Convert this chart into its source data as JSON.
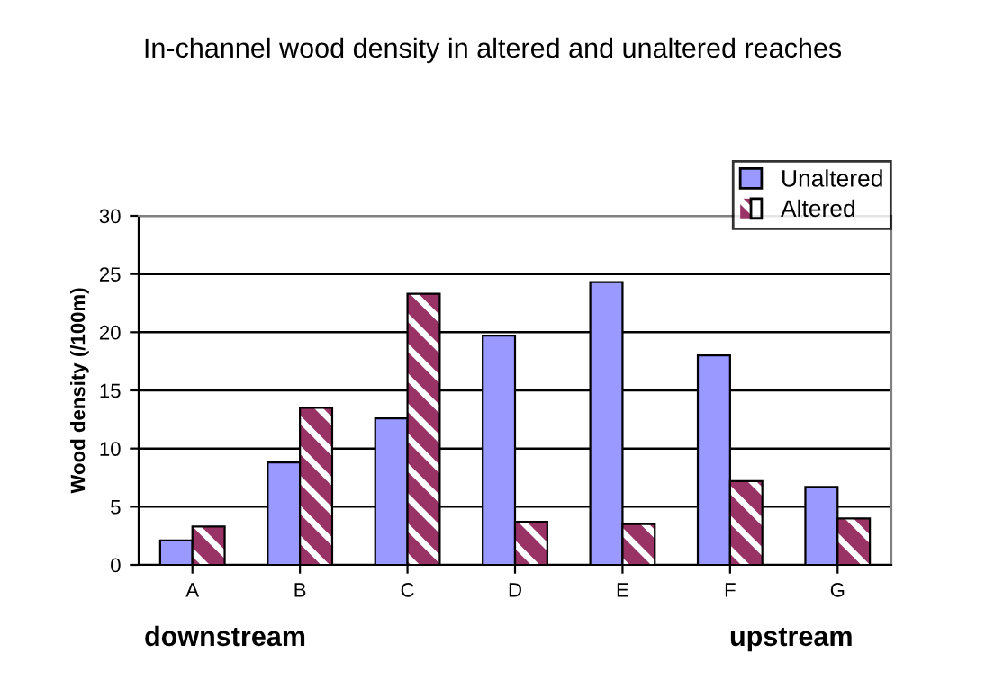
{
  "chart_data": {
    "type": "bar",
    "title": "In-channel wood density in altered and unaltered reaches",
    "ylabel": "Wood density (/100m)",
    "categories": [
      "A",
      "B",
      "C",
      "D",
      "E",
      "F",
      "G"
    ],
    "series": [
      {
        "name": "Unaltered",
        "color": "#9999ff",
        "values": [
          2.1,
          8.8,
          12.6,
          19.7,
          24.3,
          18.0,
          6.7
        ]
      },
      {
        "name": "Altered",
        "color": "#993366",
        "values": [
          3.3,
          13.5,
          23.3,
          3.7,
          3.5,
          7.2,
          4.0
        ]
      }
    ],
    "ylim": [
      0,
      30
    ],
    "yticks": [
      0,
      5,
      10,
      15,
      20,
      25,
      30
    ],
    "grid": "y",
    "legend": "top right",
    "annotations": [
      "downstream",
      "upstream"
    ]
  }
}
